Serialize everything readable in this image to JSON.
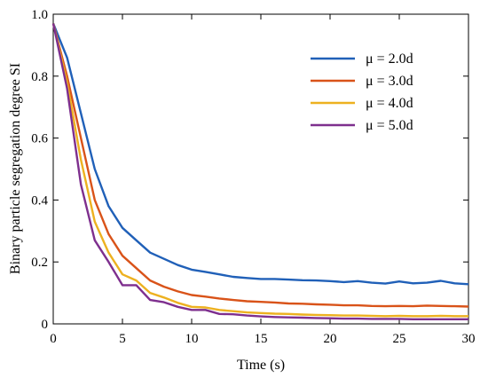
{
  "chart_data": {
    "type": "line",
    "xlabel": "Time (s)",
    "ylabel": "Binary particle segregation degree SI",
    "xlim": [
      0,
      30
    ],
    "ylim": [
      0,
      1.0
    ],
    "xticks": [
      "0",
      "5",
      "10",
      "15",
      "20",
      "25",
      "30"
    ],
    "yticks": [
      "0",
      "0.2",
      "0.4",
      "0.6",
      "0.8",
      "1.0"
    ],
    "grid": false,
    "legend_position": "top-right",
    "x": [
      0,
      1,
      2,
      3,
      4,
      5,
      6,
      7,
      8,
      9,
      10,
      11,
      12,
      13,
      14,
      15,
      16,
      17,
      18,
      19,
      20,
      21,
      22,
      23,
      24,
      25,
      26,
      27,
      28,
      29,
      30
    ],
    "series": [
      {
        "name": "μ = 2.0d",
        "color": "#2060b8",
        "values": [
          0.97,
          0.86,
          0.68,
          0.5,
          0.38,
          0.31,
          0.27,
          0.23,
          0.21,
          0.19,
          0.175,
          0.168,
          0.16,
          0.152,
          0.148,
          0.145,
          0.145,
          0.143,
          0.141,
          0.14,
          0.138,
          0.135,
          0.138,
          0.133,
          0.13,
          0.137,
          0.131,
          0.133,
          0.139,
          0.131,
          0.128
        ]
      },
      {
        "name": "μ = 3.0d",
        "color": "#d95319",
        "values": [
          0.97,
          0.8,
          0.6,
          0.4,
          0.29,
          0.22,
          0.18,
          0.14,
          0.12,
          0.105,
          0.093,
          0.088,
          0.082,
          0.077,
          0.073,
          0.071,
          0.069,
          0.066,
          0.065,
          0.063,
          0.062,
          0.06,
          0.06,
          0.058,
          0.057,
          0.058,
          0.057,
          0.059,
          0.058,
          0.057,
          0.056
        ]
      },
      {
        "name": "μ = 4.0d",
        "color": "#edb120",
        "values": [
          0.97,
          0.78,
          0.53,
          0.33,
          0.23,
          0.16,
          0.14,
          0.1,
          0.085,
          0.068,
          0.055,
          0.053,
          0.045,
          0.041,
          0.037,
          0.035,
          0.033,
          0.032,
          0.03,
          0.029,
          0.028,
          0.027,
          0.027,
          0.026,
          0.025,
          0.026,
          0.025,
          0.025,
          0.026,
          0.025,
          0.025
        ]
      },
      {
        "name": "μ = 5.0d",
        "color": "#7e2f8e",
        "values": [
          0.97,
          0.76,
          0.45,
          0.27,
          0.2,
          0.125,
          0.125,
          0.077,
          0.07,
          0.055,
          0.045,
          0.045,
          0.032,
          0.031,
          0.027,
          0.024,
          0.022,
          0.021,
          0.02,
          0.019,
          0.018,
          0.017,
          0.017,
          0.016,
          0.016,
          0.016,
          0.015,
          0.015,
          0.015,
          0.015,
          0.015
        ]
      }
    ]
  }
}
